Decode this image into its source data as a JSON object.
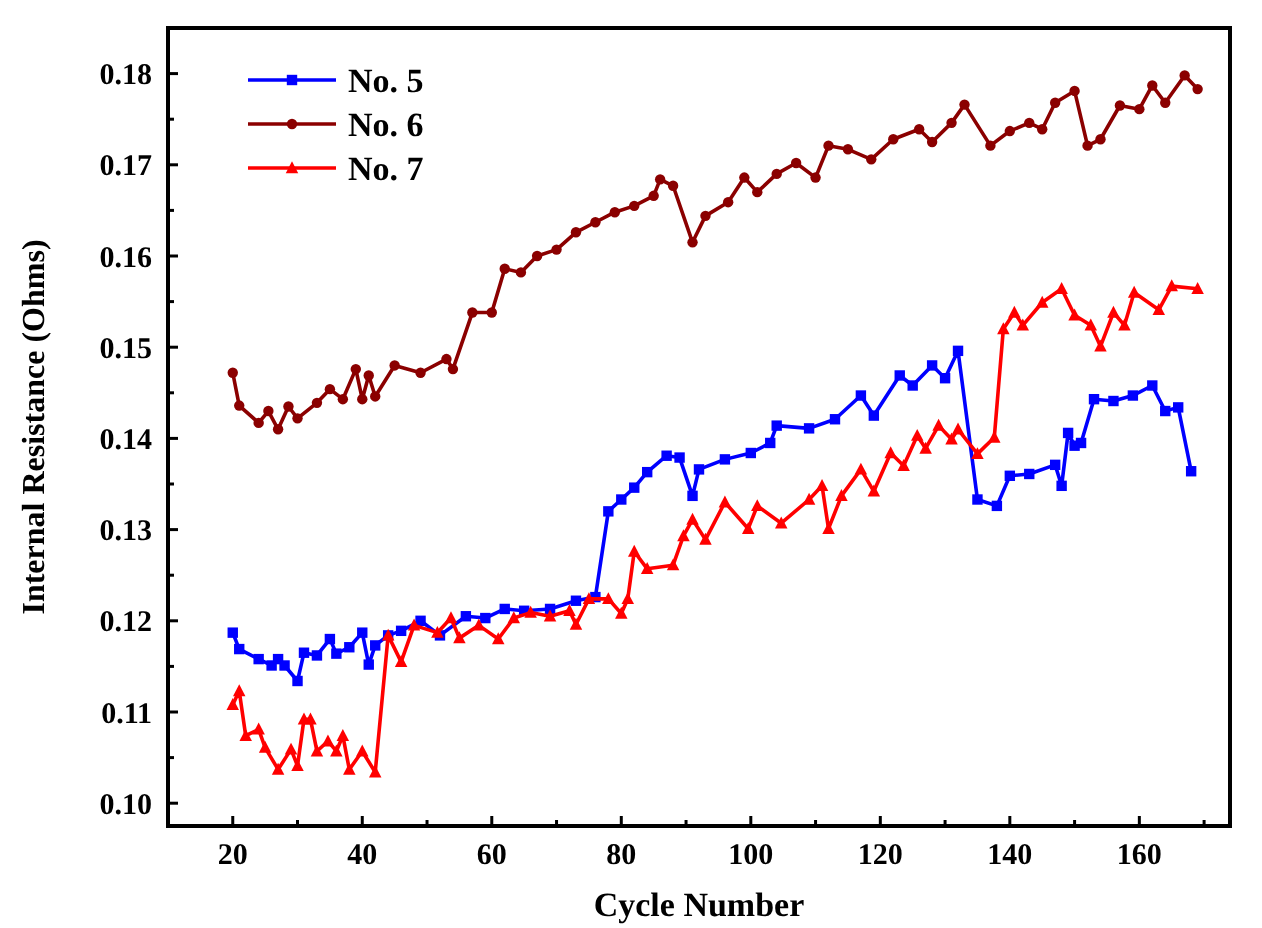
{
  "chart_data": {
    "type": "line",
    "xlabel": "Cycle Number",
    "ylabel": "Internal Resistance (Ohms)",
    "xlim": [
      10,
      174
    ],
    "xticks": [
      {
        "value": 10,
        "label": null
      },
      20,
      {
        "value": 30,
        "label": null
      },
      40,
      {
        "value": 50,
        "label": null
      },
      60,
      {
        "value": 70,
        "label": null
      },
      80,
      {
        "value": 90,
        "label": null
      },
      100,
      {
        "value": 110,
        "label": null
      },
      120,
      {
        "value": 130,
        "label": null
      },
      140,
      {
        "value": 150,
        "label": null
      },
      160,
      {
        "value": 170,
        "label": null
      }
    ],
    "ylim": [
      0.0975,
      0.185
    ],
    "yticks": [
      {
        "value": 0.1,
        "label": "0.10"
      },
      {
        "value": 0.105,
        "label": null
      },
      0.11,
      {
        "value": 0.115,
        "label": null
      },
      0.12,
      {
        "value": 0.125,
        "label": null
      },
      0.13,
      {
        "value": 0.135,
        "label": null
      },
      0.14,
      {
        "value": 0.145,
        "label": null
      },
      0.15,
      {
        "value": 0.155,
        "label": null
      },
      0.16,
      {
        "value": 0.165,
        "label": null
      },
      0.17,
      {
        "value": 0.175,
        "label": null
      },
      0.18
    ],
    "grid": false,
    "legend": "top left",
    "line_style": "solid",
    "series": [
      {
        "name": "No. 5",
        "color": "#0000ff",
        "marker": "square",
        "x": [
          20,
          21,
          24,
          26,
          27,
          28,
          30,
          31,
          33,
          35,
          36,
          38,
          40,
          41,
          42,
          44,
          46,
          49,
          52,
          56,
          59,
          62,
          65,
          69,
          73,
          76,
          78,
          80,
          82,
          84,
          87,
          89,
          91,
          92,
          96,
          100,
          103,
          104,
          109,
          113,
          117,
          119,
          123,
          125,
          128,
          130,
          132,
          135,
          138,
          140,
          143,
          147,
          148,
          149,
          150,
          151,
          153,
          156,
          159,
          162,
          164,
          166,
          168
        ],
        "values": [
          0.1187,
          0.1169,
          0.1158,
          0.1151,
          0.1158,
          0.1151,
          0.1134,
          0.1165,
          0.1162,
          0.118,
          0.1164,
          0.1171,
          0.1187,
          0.1152,
          0.1173,
          0.1184,
          0.1189,
          0.12,
          0.1184,
          0.1205,
          0.1203,
          0.1213,
          0.1211,
          0.1213,
          0.1222,
          0.1226,
          0.132,
          0.1333,
          0.1346,
          0.1363,
          0.1381,
          0.1379,
          0.1337,
          0.1366,
          0.1377,
          0.1384,
          0.1395,
          0.1414,
          0.1411,
          0.1421,
          0.1447,
          0.1425,
          0.1469,
          0.1458,
          0.148,
          0.1466,
          0.1496,
          0.1333,
          0.1326,
          0.1359,
          0.1361,
          0.1371,
          0.1348,
          0.1406,
          0.1392,
          0.1395,
          0.1443,
          0.1441,
          0.1447,
          0.1458,
          0.143,
          0.1434,
          0.1364
        ]
      },
      {
        "name": "No. 6",
        "color": "#8b0000",
        "marker": "circle",
        "x": [
          20,
          21,
          24,
          25.5,
          27,
          28.6,
          30,
          33,
          35,
          37,
          39,
          40,
          41,
          42,
          45,
          49,
          53,
          54,
          57,
          60,
          62,
          64.5,
          67,
          70,
          73,
          76,
          79,
          82,
          85,
          86,
          88,
          91,
          93,
          96.5,
          99,
          101,
          104,
          107,
          110,
          112,
          115,
          118.6,
          122,
          126,
          128,
          131,
          133,
          137,
          140,
          143,
          145,
          147,
          150,
          152,
          154,
          157,
          160,
          162,
          164,
          167,
          169
        ],
        "values": [
          0.1472,
          0.1436,
          0.1417,
          0.143,
          0.141,
          0.1435,
          0.1422,
          0.1439,
          0.1454,
          0.1443,
          0.1476,
          0.1443,
          0.1469,
          0.1446,
          0.148,
          0.1472,
          0.1487,
          0.1476,
          0.1538,
          0.1538,
          0.1586,
          0.1582,
          0.16,
          0.1607,
          0.1626,
          0.1637,
          0.1648,
          0.1655,
          0.1666,
          0.1684,
          0.1677,
          0.1615,
          0.1644,
          0.1659,
          0.1686,
          0.167,
          0.169,
          0.1702,
          0.1686,
          0.1721,
          0.1717,
          0.1706,
          0.1728,
          0.1739,
          0.1725,
          0.1746,
          0.1766,
          0.1721,
          0.1737,
          0.1746,
          0.1739,
          0.1768,
          0.1781,
          0.1721,
          0.1728,
          0.1765,
          0.1761,
          0.1787,
          0.1768,
          0.1798,
          0.1783
        ]
      },
      {
        "name": "No. 7",
        "color": "#ff0000",
        "marker": "triangle",
        "x": [
          20,
          21,
          22,
          24,
          25,
          27,
          29,
          30,
          31,
          32,
          33,
          34.7,
          36,
          37,
          38,
          40,
          42,
          44,
          46,
          48,
          51.6,
          53.7,
          55,
          58,
          61,
          63.4,
          66,
          69,
          72,
          73,
          75,
          78,
          80,
          81,
          82,
          84,
          88,
          89.6,
          91,
          93,
          96,
          99.6,
          101,
          104.7,
          109,
          111,
          112,
          114,
          117,
          119,
          121.6,
          123.6,
          125.7,
          127,
          129,
          131,
          132,
          135,
          137.6,
          139,
          140.7,
          142,
          145,
          148,
          150,
          152.5,
          154,
          156,
          157.7,
          159.2,
          163,
          165,
          169
        ],
        "values": [
          0.1108,
          0.1123,
          0.1074,
          0.1081,
          0.1061,
          0.1037,
          0.1059,
          0.1041,
          0.1092,
          0.1092,
          0.1057,
          0.1068,
          0.1057,
          0.1074,
          0.1037,
          0.1057,
          0.1034,
          0.1184,
          0.1155,
          0.1195,
          0.1187,
          0.1203,
          0.1181,
          0.1195,
          0.118,
          0.1203,
          0.1209,
          0.1205,
          0.1211,
          0.1196,
          0.1224,
          0.1224,
          0.1208,
          0.1224,
          0.1276,
          0.1257,
          0.1261,
          0.1293,
          0.1311,
          0.1289,
          0.133,
          0.1301,
          0.1326,
          0.1307,
          0.1333,
          0.1348,
          0.1301,
          0.1337,
          0.1366,
          0.1342,
          0.1384,
          0.137,
          0.1403,
          0.1389,
          0.1414,
          0.1399,
          0.141,
          0.1383,
          0.1401,
          0.152,
          0.1538,
          0.1524,
          0.1549,
          0.1564,
          0.1535,
          0.1524,
          0.1501,
          0.1538,
          0.1524,
          0.156,
          0.1541,
          0.1567,
          0.1564
        ]
      }
    ]
  }
}
